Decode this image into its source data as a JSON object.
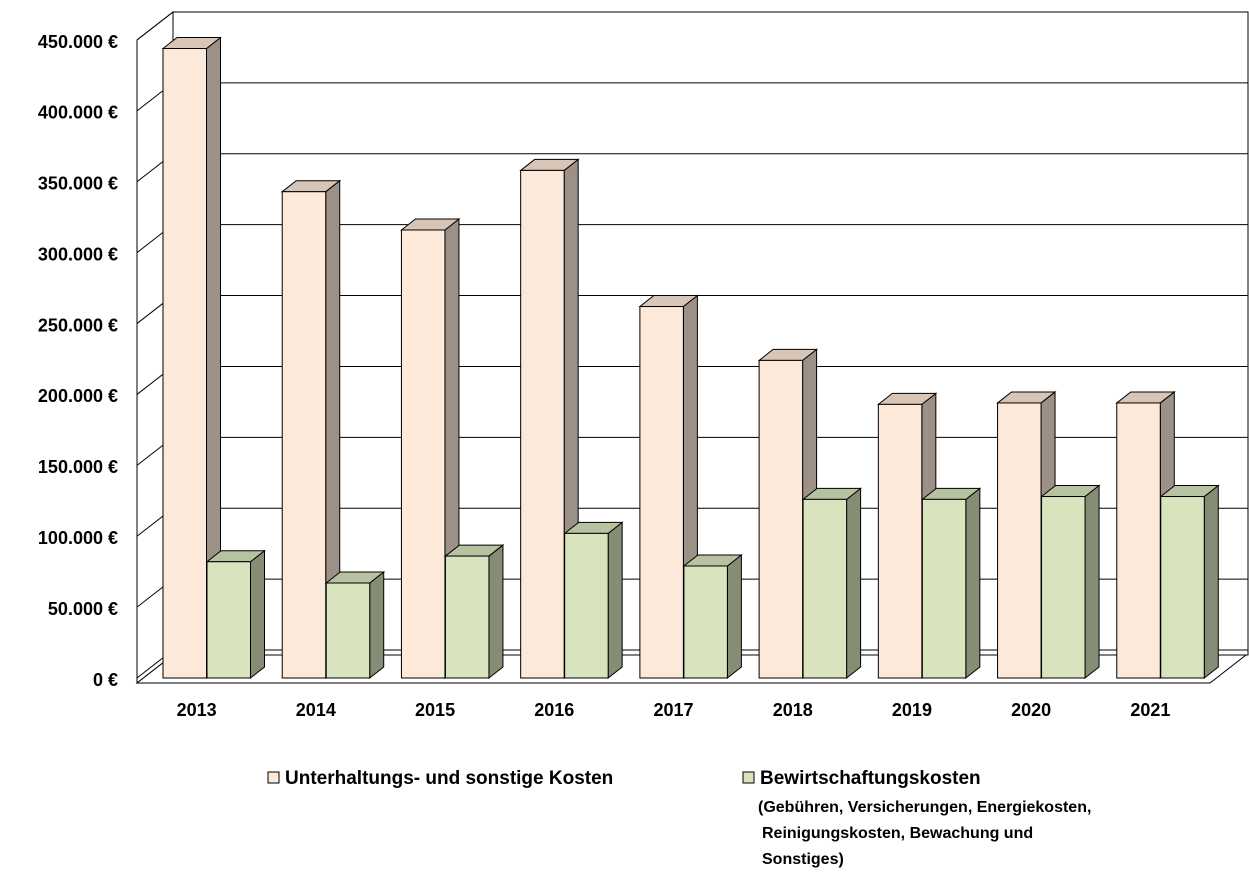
{
  "chart_data": {
    "type": "bar3d",
    "categories": [
      "2013",
      "2014",
      "2015",
      "2016",
      "2017",
      "2018",
      "2019",
      "2020",
      "2021"
    ],
    "series": [
      {
        "name": "Unterhaltungs- und sonstige Kosten",
        "color": "#fde9d9",
        "values": [
          444000,
          343000,
          316000,
          358000,
          262000,
          224000,
          193000,
          194000,
          194000
        ]
      },
      {
        "name": "Bewirtschaftungskosten",
        "color": "#d7e4bd",
        "values": [
          82000,
          67000,
          86000,
          102000,
          79000,
          126000,
          126000,
          128000,
          128000
        ]
      }
    ],
    "legend_note": [
      "(Gebühren, Versicherungen, Energiekosten,",
      "Reinigungskosten, Bewachung und",
      "Sonstiges)"
    ],
    "ylim": [
      0,
      450000
    ],
    "yticks": [
      {
        "value": 0,
        "label": "0 €"
      },
      {
        "value": 50000,
        "label": "50.000 €"
      },
      {
        "value": 100000,
        "label": "100.000 €"
      },
      {
        "value": 150000,
        "label": "150.000 €"
      },
      {
        "value": 200000,
        "label": "200.000 €"
      },
      {
        "value": 250000,
        "label": "250.000 €"
      },
      {
        "value": 300000,
        "label": "300.000 €"
      },
      {
        "value": 350000,
        "label": "350.000 €"
      },
      {
        "value": 400000,
        "label": "400.000 €"
      },
      {
        "value": 450000,
        "label": "450.000 €"
      }
    ],
    "grid": true,
    "legend": "bottom"
  }
}
